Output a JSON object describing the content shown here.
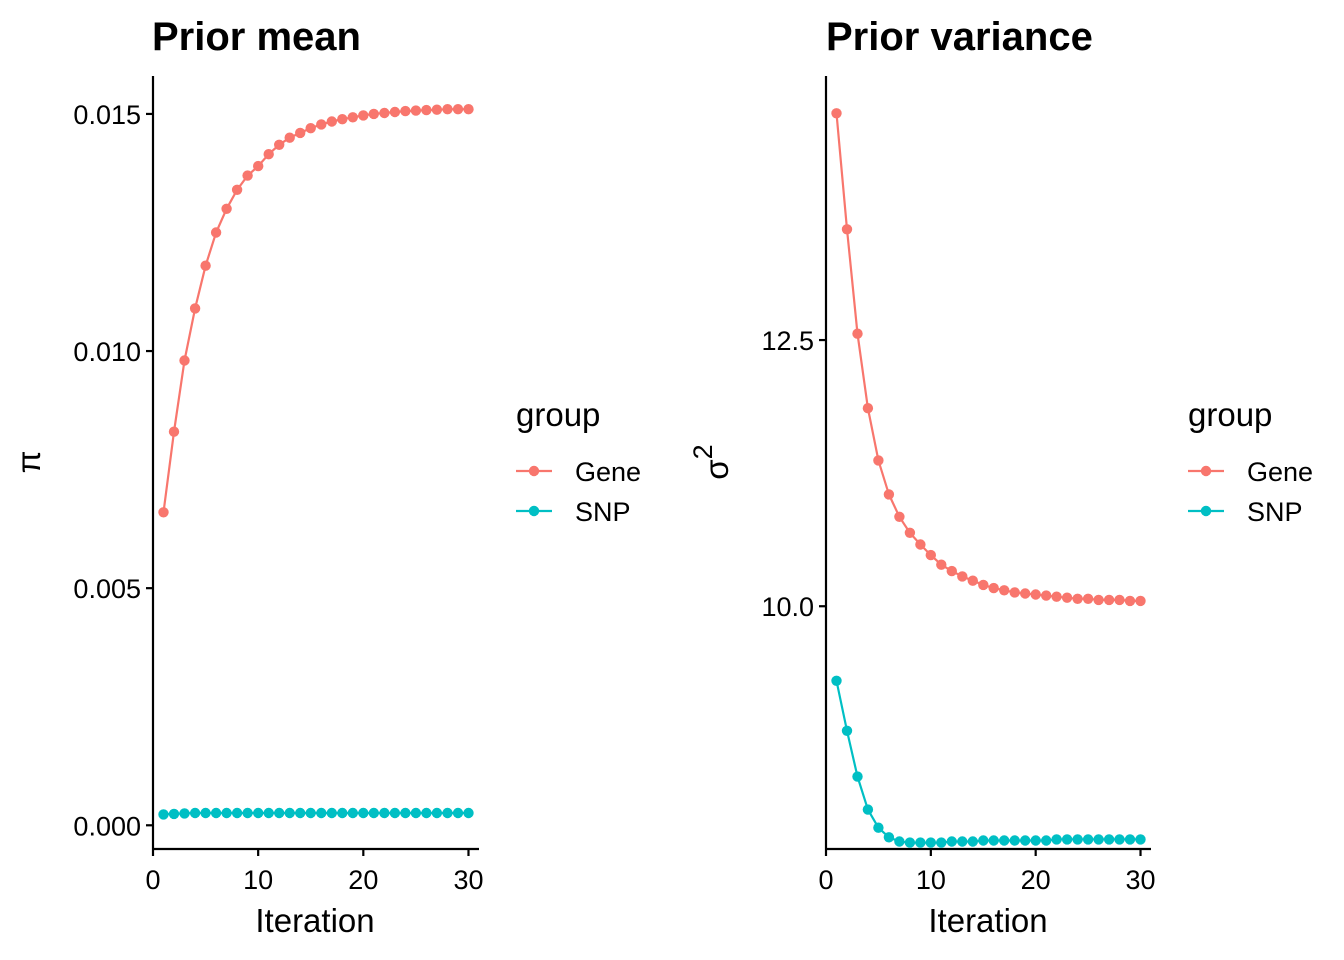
{
  "chart_data": [
    {
      "type": "line",
      "title": "Prior mean",
      "xlabel": "Iteration",
      "ylabel": "π",
      "xlim": [
        0,
        31
      ],
      "ylim": [
        -0.0005,
        0.0158
      ],
      "xticks": [
        0,
        10,
        20,
        30
      ],
      "xtick_labels": [
        "0",
        "10",
        "20",
        "30"
      ],
      "yticks": [
        0,
        0.005,
        0.01,
        0.015
      ],
      "ytick_labels": [
        "0.000",
        "0.005",
        "0.010",
        "0.015"
      ],
      "grid": false,
      "legend": {
        "title": "group",
        "placement": "right"
      },
      "x": [
        1,
        2,
        3,
        4,
        5,
        6,
        7,
        8,
        9,
        10,
        11,
        12,
        13,
        14,
        15,
        16,
        17,
        18,
        19,
        20,
        21,
        22,
        23,
        24,
        25,
        26,
        27,
        28,
        29,
        30
      ],
      "series": [
        {
          "name": "Gene",
          "color": "#F8766D",
          "values": [
            0.0066,
            0.0083,
            0.0098,
            0.0109,
            0.0118,
            0.0125,
            0.013,
            0.0134,
            0.0137,
            0.0139,
            0.01415,
            0.01435,
            0.0145,
            0.0146,
            0.0147,
            0.01478,
            0.01484,
            0.01489,
            0.01493,
            0.01497,
            0.015,
            0.01502,
            0.01504,
            0.01506,
            0.01507,
            0.01508,
            0.01509,
            0.0151,
            0.0151,
            0.0151
          ]
        },
        {
          "name": "SNP",
          "color": "#00BFC4",
          "values": [
            0.00023,
            0.00024,
            0.00025,
            0.00026,
            0.00026,
            0.00026,
            0.00026,
            0.00026,
            0.00026,
            0.00026,
            0.00026,
            0.00026,
            0.00026,
            0.00026,
            0.00026,
            0.00026,
            0.00026,
            0.00026,
            0.00026,
            0.00026,
            0.00026,
            0.00026,
            0.00026,
            0.00026,
            0.00026,
            0.00026,
            0.00026,
            0.00026,
            0.00026,
            0.00026
          ]
        }
      ]
    },
    {
      "type": "line",
      "title": "Prior variance",
      "xlabel": "Iteration",
      "ylabel": "σ",
      "ylabel_superscript": "2",
      "xlim": [
        0,
        31
      ],
      "ylim": [
        7.72,
        14.98
      ],
      "xticks": [
        0,
        10,
        20,
        30
      ],
      "xtick_labels": [
        "0",
        "10",
        "20",
        "30"
      ],
      "yticks": [
        10,
        12.5
      ],
      "ytick_labels": [
        "10.0",
        "12.5"
      ],
      "grid": false,
      "legend": {
        "title": "group",
        "placement": "right"
      },
      "x": [
        1,
        2,
        3,
        4,
        5,
        6,
        7,
        8,
        9,
        10,
        11,
        12,
        13,
        14,
        15,
        16,
        17,
        18,
        19,
        20,
        21,
        22,
        23,
        24,
        25,
        26,
        27,
        28,
        29,
        30
      ],
      "series": [
        {
          "name": "Gene",
          "color": "#F8766D",
          "values": [
            14.63,
            13.54,
            12.56,
            11.86,
            11.37,
            11.05,
            10.84,
            10.69,
            10.58,
            10.48,
            10.39,
            10.33,
            10.28,
            10.24,
            10.2,
            10.17,
            10.15,
            10.13,
            10.12,
            10.11,
            10.1,
            10.09,
            10.08,
            10.07,
            10.07,
            10.06,
            10.06,
            10.06,
            10.05,
            10.05
          ]
        },
        {
          "name": "SNP",
          "color": "#00BFC4",
          "values": [
            9.3,
            8.83,
            8.4,
            8.09,
            7.92,
            7.83,
            7.79,
            7.78,
            7.78,
            7.78,
            7.78,
            7.79,
            7.79,
            7.79,
            7.8,
            7.8,
            7.8,
            7.8,
            7.8,
            7.8,
            7.8,
            7.81,
            7.81,
            7.81,
            7.81,
            7.81,
            7.81,
            7.81,
            7.81,
            7.81
          ]
        }
      ]
    }
  ]
}
